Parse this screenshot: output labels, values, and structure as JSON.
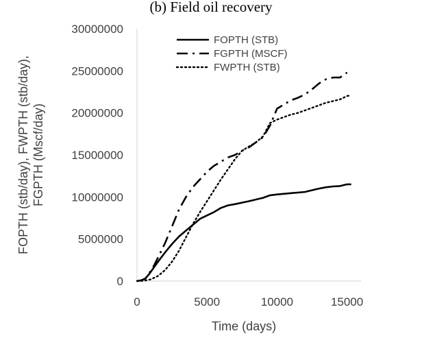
{
  "chart_data": {
    "type": "line",
    "title": "(b)  Field oil recovery",
    "xlabel": "Time (days)",
    "ylabel_lines": [
      "FOPTH (stb/day), FWPTH (stb/day),",
      "FGPTH (Mscf/day)"
    ],
    "xlim": [
      0,
      16000
    ],
    "ylim": [
      0,
      30000000
    ],
    "x_ticks": [
      0,
      5000,
      10000,
      15000
    ],
    "x_tick_labels": [
      "0",
      "5000",
      "10000",
      "15000"
    ],
    "y_ticks": [
      0,
      5000000,
      10000000,
      15000000,
      20000000,
      25000000,
      30000000
    ],
    "y_tick_labels": [
      "0",
      "5000000",
      "10000000",
      "15000000",
      "20000000",
      "25000000",
      "30000000"
    ],
    "grid": false,
    "legend_position": "top-right",
    "series": [
      {
        "name": "FOPTH  (STB)",
        "style": "solid",
        "color": "#000000",
        "x": [
          0,
          300,
          600,
          900,
          1200,
          1500,
          2000,
          2500,
          3000,
          3500,
          4000,
          4500,
          5000,
          5500,
          6000,
          6500,
          7000,
          8000,
          9000,
          9500,
          10000,
          11000,
          12000,
          12500,
          13000,
          13500,
          14000,
          14500,
          15000,
          15300
        ],
        "y": [
          0,
          80000,
          300000,
          900000,
          1600000,
          2300000,
          3400000,
          4400000,
          5300000,
          6000000,
          6700000,
          7400000,
          7800000,
          8200000,
          8700000,
          9000000,
          9150000,
          9500000,
          9900000,
          10200000,
          10300000,
          10450000,
          10600000,
          10800000,
          11000000,
          11150000,
          11250000,
          11300000,
          11500000,
          11500000
        ]
      },
      {
        "name": "FGPTH  (MSCF)",
        "style": "dashdot",
        "color": "#000000",
        "x": [
          0,
          300,
          600,
          900,
          1200,
          1500,
          2000,
          2500,
          3000,
          3500,
          4000,
          4500,
          5000,
          5500,
          6000,
          6500,
          7000,
          7500,
          8000,
          8500,
          9000,
          9500,
          10000,
          10500,
          11000,
          11500,
          12000,
          12500,
          13000,
          13500,
          14000,
          14500,
          15000
        ],
        "y": [
          0,
          80000,
          300000,
          1000000,
          1800000,
          2800000,
          4500000,
          6500000,
          8500000,
          10000000,
          11200000,
          12100000,
          13000000,
          13700000,
          14200000,
          14700000,
          15000000,
          15500000,
          15900000,
          16500000,
          17100000,
          18500000,
          20500000,
          21000000,
          21500000,
          21800000,
          22200000,
          22800000,
          23500000,
          24000000,
          24200000,
          24200000,
          24800000
        ]
      },
      {
        "name": "FWPTH  (STB)",
        "style": "dotted",
        "color": "#000000",
        "x": [
          0,
          500,
          1000,
          1500,
          2000,
          2500,
          3000,
          3500,
          4000,
          4500,
          5000,
          5500,
          6000,
          6500,
          7000,
          7500,
          8000,
          8500,
          9000,
          9500,
          10000,
          10500,
          11000,
          11500,
          12000,
          12500,
          13000,
          13500,
          14000,
          14500,
          15000,
          15300
        ],
        "y": [
          0,
          30000,
          200000,
          600000,
          1300000,
          2300000,
          3600000,
          5200000,
          6800000,
          8200000,
          9500000,
          10800000,
          12100000,
          13300000,
          14500000,
          15500000,
          16000000,
          16500000,
          17200000,
          18800000,
          19200000,
          19500000,
          19800000,
          20000000,
          20300000,
          20600000,
          20900000,
          21200000,
          21400000,
          21600000,
          22000000,
          22100000
        ]
      }
    ]
  }
}
